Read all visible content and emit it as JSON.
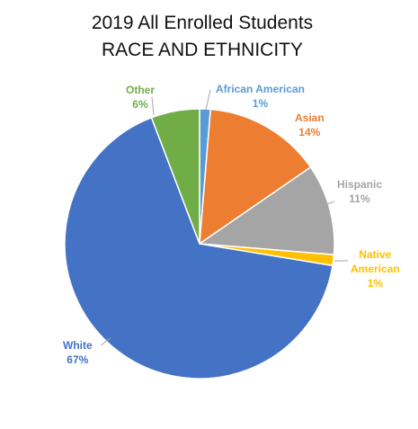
{
  "chart_data": {
    "type": "pie",
    "title": [
      "2019 All Enrolled Students",
      "RACE AND ETHNICITY"
    ],
    "slices": [
      {
        "label": [
          "African American"
        ],
        "display": "1%",
        "value": 1.3,
        "color": "#5B9BD5"
      },
      {
        "label": [
          "Asian"
        ],
        "display": "14%",
        "value": 14.1,
        "color": "#ED7D31"
      },
      {
        "label": [
          "Hispanic"
        ],
        "display": "11%",
        "value": 10.9,
        "color": "#A5A5A5"
      },
      {
        "label": [
          "Native",
          "American"
        ],
        "display": "1%",
        "value": 1.3,
        "color": "#FFC000"
      },
      {
        "label": [
          "White"
        ],
        "display": "67%",
        "value": 66.6,
        "color": "#4472C4"
      },
      {
        "label": [
          "Other"
        ],
        "display": "6%",
        "value": 5.8,
        "color": "#70AD47"
      }
    ]
  }
}
